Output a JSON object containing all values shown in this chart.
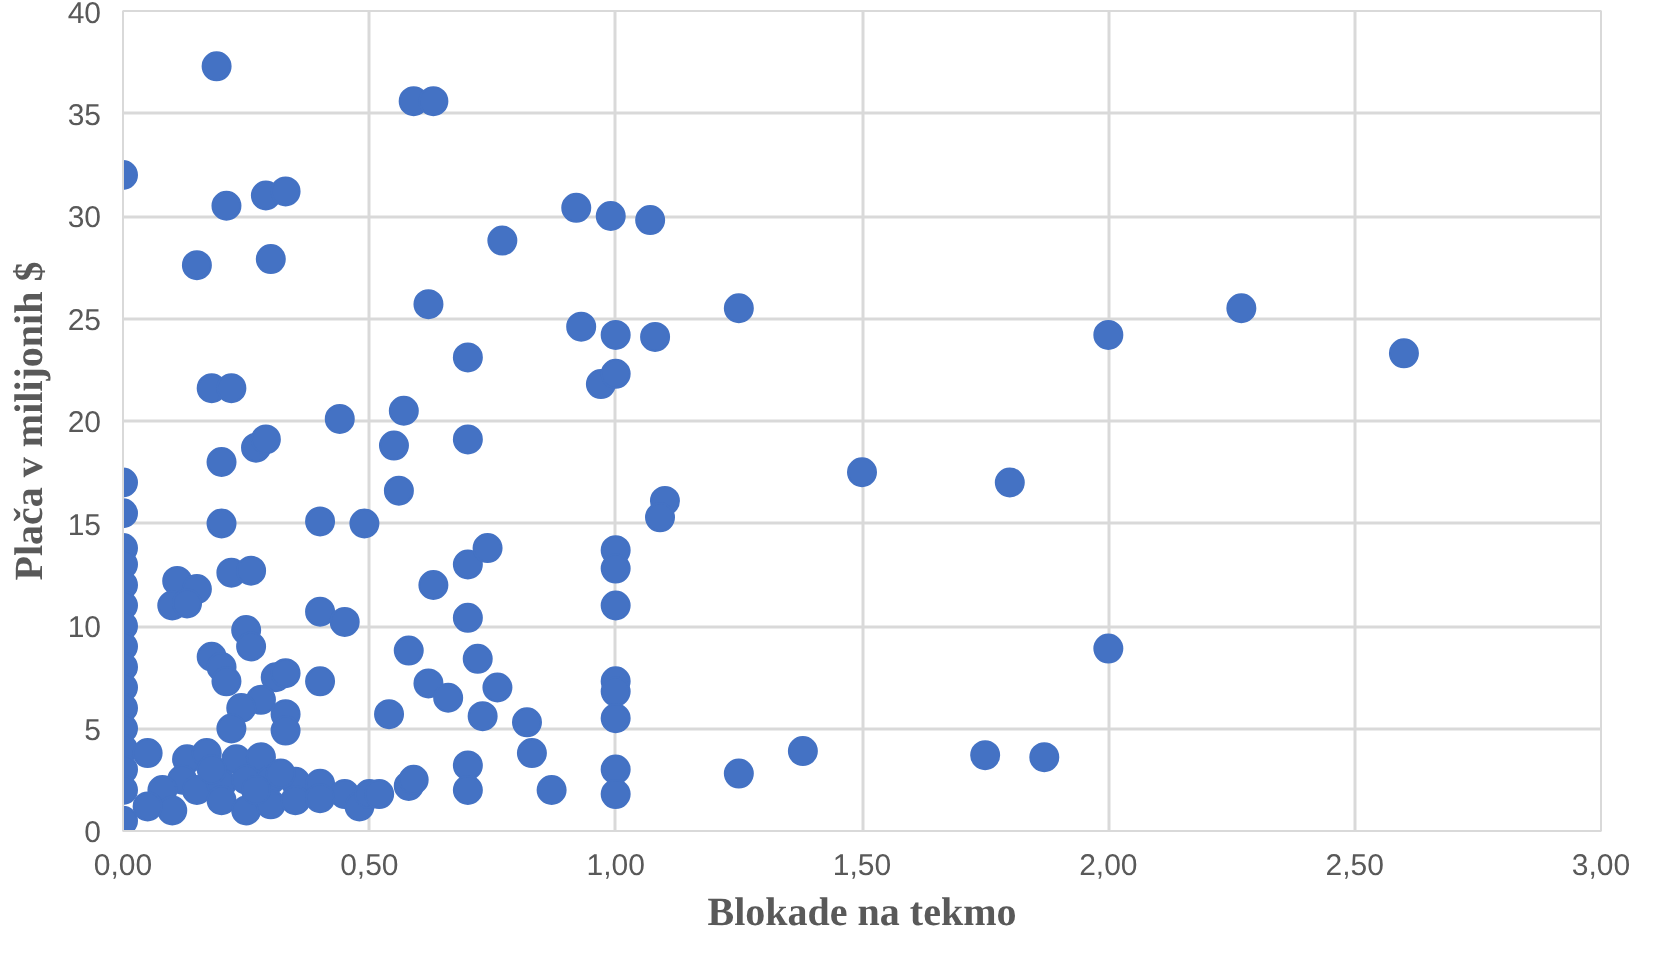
{
  "chart_data": {
    "type": "scatter",
    "xlabel": "Blokade na tekmo",
    "ylabel": "Plača v milijonih $",
    "marker": "circle",
    "grid": true,
    "xlim": [
      0,
      3
    ],
    "ylim": [
      0,
      40
    ],
    "xticks": [
      {
        "value": 0,
        "label": "0,00"
      },
      {
        "value": 0.5,
        "label": "0,50"
      },
      {
        "value": 1,
        "label": "1,00"
      },
      {
        "value": 1.5,
        "label": "1,50"
      },
      {
        "value": 2,
        "label": "2,00"
      },
      {
        "value": 2.5,
        "label": "2,50"
      },
      {
        "value": 3,
        "label": "3,00"
      }
    ],
    "yticks": [
      0,
      5,
      10,
      15,
      20,
      25,
      30,
      35,
      40
    ],
    "series": [
      {
        "color": "#4472c4",
        "x": [
          0,
          0,
          0,
          0,
          0,
          0,
          0,
          0,
          0,
          0,
          0,
          0,
          0,
          0,
          0,
          0,
          0,
          0.19,
          0.59,
          0.63,
          0.21,
          0.29,
          0.33,
          0.15,
          0.3,
          0.92,
          0.99,
          1.07,
          0.77,
          0.62,
          0.93,
          1.0,
          1.08,
          1.25,
          2.27,
          2.0,
          2.6,
          0.7,
          0.97,
          1.0,
          0.18,
          0.22,
          0.44,
          0.57,
          0.27,
          0.29,
          0.2,
          0.55,
          0.7,
          0.56,
          1.1,
          1.09,
          1.5,
          1.8,
          0.2,
          0.4,
          0.49,
          0.22,
          0.26,
          0.11,
          0.15,
          0.1,
          0.13,
          0.63,
          0.7,
          0.74,
          1.0,
          1.0,
          1.0,
          0.4,
          0.45,
          0.7,
          0.25,
          0.26,
          0.18,
          0.2,
          0.21,
          0.31,
          0.33,
          0.4,
          0.58,
          0.72,
          0.62,
          0.66,
          0.76,
          0.54,
          0.73,
          0.82,
          1.0,
          1.0,
          1.0,
          2.0,
          0.28,
          0.24,
          0.33,
          0.33,
          0.22,
          0.05,
          0.13,
          0.17,
          0.23,
          0.28,
          0.12,
          0.08,
          0.15,
          0.2,
          0.25,
          0.3,
          0.35,
          0.4,
          0.45,
          0.48,
          0.5,
          0.52,
          0.58,
          0.59,
          0.7,
          0.7,
          0.83,
          0.87,
          1.0,
          1.0,
          1.25,
          1.38,
          1.75,
          1.87,
          0.1,
          0.2,
          0.25,
          0.3,
          0.35,
          0.05,
          0.4,
          0.18,
          0.27,
          0.32
        ],
        "values": [
          32,
          17,
          15.5,
          13.8,
          13,
          12,
          11,
          10,
          9,
          8,
          7,
          6,
          5,
          4,
          3,
          2,
          0.5,
          37.3,
          35.6,
          35.6,
          30.5,
          31,
          31.2,
          27.6,
          27.9,
          30.4,
          30,
          29.8,
          28.8,
          25.7,
          24.6,
          24.2,
          24.1,
          25.5,
          25.5,
          24.2,
          23.3,
          23.1,
          21.8,
          22.3,
          21.6,
          21.6,
          20.1,
          20.5,
          18.7,
          19.1,
          18,
          18.8,
          19.1,
          16.6,
          16.1,
          15.3,
          17.5,
          17,
          15,
          15.1,
          15,
          12.6,
          12.7,
          12.2,
          11.8,
          11,
          11.1,
          12,
          13,
          13.8,
          13.7,
          12.8,
          11,
          10.7,
          10.2,
          10.4,
          9.8,
          9,
          8.5,
          8,
          7.3,
          7.5,
          7.7,
          7.3,
          8.8,
          8.4,
          7.2,
          6.5,
          7,
          5.7,
          5.6,
          5.3,
          7.3,
          6.8,
          5.5,
          8.9,
          6.4,
          6,
          5.7,
          4.9,
          5,
          3.8,
          3.5,
          3.8,
          3.5,
          3.6,
          2.5,
          2,
          2,
          2.3,
          2.5,
          2.5,
          2.4,
          2.3,
          1.8,
          1.2,
          1.8,
          1.8,
          2.2,
          2.5,
          3.2,
          2,
          3.8,
          2,
          3,
          1.8,
          2.8,
          3.9,
          3.7,
          3.6,
          1,
          1.5,
          1,
          1.3,
          1.5,
          1.2,
          1.6,
          3,
          2,
          2.8
        ]
      }
    ]
  }
}
